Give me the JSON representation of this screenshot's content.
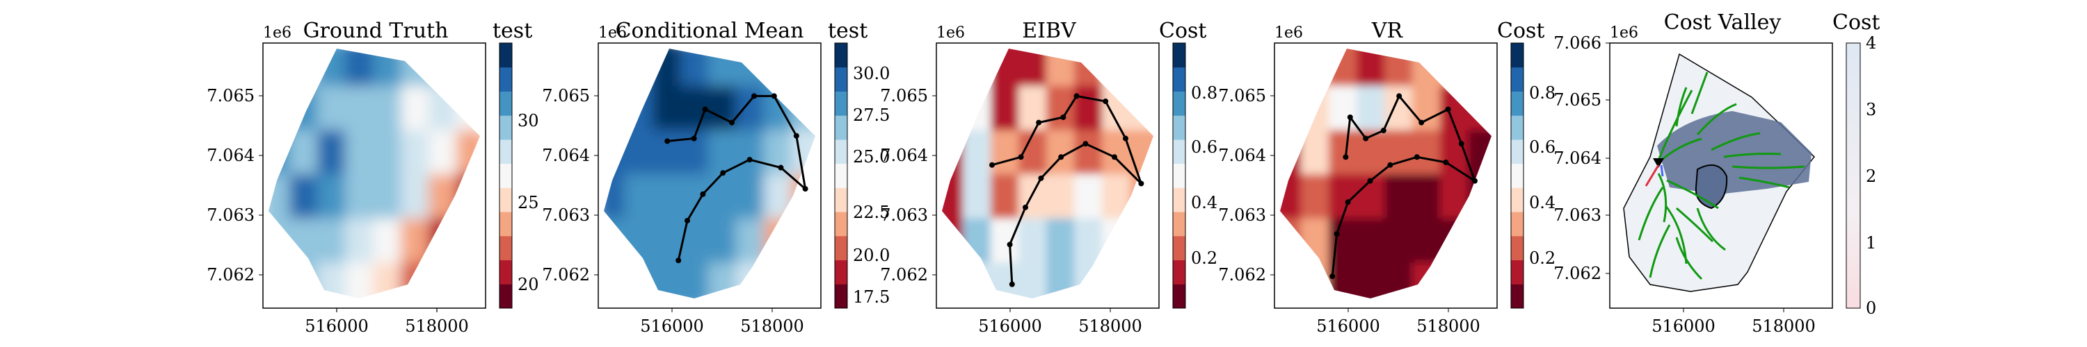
{
  "chart_data": [
    {
      "type": "heatmap",
      "title": "Ground Truth",
      "axis_offset_label": "1e6",
      "colorbar_label": "test",
      "xticks": [
        "516000",
        "518000"
      ],
      "yticks": [
        "7.065",
        "7.064",
        "7.063",
        "7.062"
      ],
      "colorbar_ticks": [
        "30",
        "25",
        "20"
      ],
      "colormap": [
        "#67001f",
        "#b2182b",
        "#d6604d",
        "#f4a582",
        "#fddbc7",
        "#f7f7f7",
        "#d1e5f0",
        "#92c5de",
        "#4393c3",
        "#2166ac",
        "#053061"
      ],
      "colorbar_range": [
        18,
        35
      ],
      "field_values": [
        [
          30,
          30,
          31,
          32,
          31,
          30,
          30,
          30
        ],
        [
          29,
          31,
          30,
          30,
          29,
          27,
          28,
          27
        ],
        [
          31,
          30,
          32,
          29,
          30,
          28,
          26,
          24
        ],
        [
          30,
          32,
          31,
          30,
          29,
          28,
          24,
          20
        ],
        [
          29,
          30,
          29,
          28,
          27,
          24,
          20,
          19
        ],
        [
          29,
          29,
          28,
          27,
          25,
          22,
          20,
          22
        ]
      ]
    },
    {
      "type": "heatmap",
      "title": "Conditional Mean",
      "axis_offset_label": "1e6",
      "colorbar_label": "test",
      "xticks": [
        "516000",
        "518000"
      ],
      "yticks": [
        "7.065",
        "7.064",
        "7.063",
        "7.062"
      ],
      "colorbar_ticks": [
        "30.0",
        "27.5",
        "25.0",
        "22.5",
        "20.0",
        "17.5"
      ],
      "colormap": [
        "#67001f",
        "#b2182b",
        "#d6604d",
        "#f4a582",
        "#fddbc7",
        "#f7f7f7",
        "#d1e5f0",
        "#92c5de",
        "#4393c3",
        "#2166ac",
        "#053061"
      ],
      "colorbar_range": [
        16.5,
        32
      ],
      "field_values": [
        [
          30,
          30,
          31,
          30,
          29,
          29,
          29,
          28
        ],
        [
          30,
          30,
          31,
          32,
          31,
          30,
          28,
          27
        ],
        [
          30,
          30,
          30,
          30,
          29,
          29,
          27,
          26
        ],
        [
          30,
          29,
          29,
          29,
          29,
          28,
          25,
          22
        ],
        [
          29,
          29,
          29,
          28,
          28,
          27,
          22,
          20
        ],
        [
          29,
          29,
          28,
          28,
          27,
          26,
          24,
          23
        ]
      ],
      "path": [
        [
          0.36,
          0.82
        ],
        [
          0.4,
          0.67
        ],
        [
          0.47,
          0.57
        ],
        [
          0.56,
          0.49
        ],
        [
          0.68,
          0.44
        ],
        [
          0.82,
          0.47
        ],
        [
          0.93,
          0.55
        ],
        [
          0.89,
          0.35
        ],
        [
          0.79,
          0.2
        ],
        [
          0.7,
          0.2
        ],
        [
          0.6,
          0.3
        ],
        [
          0.48,
          0.25
        ],
        [
          0.43,
          0.36
        ],
        [
          0.31,
          0.37
        ]
      ]
    },
    {
      "type": "heatmap",
      "title": "EIBV",
      "axis_offset_label": "1e6",
      "colorbar_label": "Cost",
      "xticks": [
        "516000",
        "518000"
      ],
      "yticks": [
        "7.065",
        "7.064",
        "7.063",
        "7.062"
      ],
      "colorbar_ticks": [
        "0.8",
        "0.6",
        "0.4",
        "0.2"
      ],
      "colormap": [
        "#67001f",
        "#b2182b",
        "#d6604d",
        "#f4a582",
        "#fddbc7",
        "#f7f7f7",
        "#d1e5f0",
        "#92c5de",
        "#4393c3",
        "#2166ac",
        "#053061"
      ],
      "colorbar_range": [
        0,
        1
      ],
      "field_values": [
        [
          0.3,
          0.5,
          0.1,
          0.1,
          0.3,
          0.2,
          0.4,
          0.5
        ],
        [
          0.2,
          0.5,
          0.1,
          0.4,
          0.2,
          0.1,
          0.4,
          0.4
        ],
        [
          0.1,
          0.6,
          0.3,
          0.2,
          0.3,
          0.2,
          0.3,
          0.3
        ],
        [
          0.1,
          0.6,
          0.2,
          0.4,
          0.4,
          0.5,
          0.4,
          0.3
        ],
        [
          0.1,
          0.7,
          0.5,
          0.6,
          0.7,
          0.6,
          0.5,
          0.2
        ],
        [
          0.5,
          0.6,
          0.6,
          0.6,
          0.7,
          0.6,
          0.5,
          0.4
        ]
      ],
      "path": [
        [
          0.34,
          0.91
        ],
        [
          0.33,
          0.76
        ],
        [
          0.4,
          0.62
        ],
        [
          0.47,
          0.51
        ],
        [
          0.56,
          0.43
        ],
        [
          0.67,
          0.38
        ],
        [
          0.8,
          0.43
        ],
        [
          0.92,
          0.53
        ],
        [
          0.85,
          0.36
        ],
        [
          0.76,
          0.22
        ],
        [
          0.63,
          0.2
        ],
        [
          0.57,
          0.28
        ],
        [
          0.46,
          0.3
        ],
        [
          0.38,
          0.43
        ],
        [
          0.25,
          0.46
        ]
      ]
    },
    {
      "type": "heatmap",
      "title": "VR",
      "axis_offset_label": "1e6",
      "colorbar_label": "Cost",
      "xticks": [
        "516000",
        "518000"
      ],
      "yticks": [
        "7.065",
        "7.064",
        "7.063",
        "7.062"
      ],
      "colorbar_ticks": [
        "0.8",
        "0.6",
        "0.4",
        "0.2"
      ],
      "colormap": [
        "#67001f",
        "#b2182b",
        "#d6604d",
        "#f4a582",
        "#fddbc7",
        "#f7f7f7",
        "#d1e5f0",
        "#92c5de",
        "#4393c3",
        "#2166ac",
        "#053061"
      ],
      "colorbar_range": [
        0,
        1
      ],
      "field_values": [
        [
          0.2,
          0.3,
          0.2,
          0.1,
          0.2,
          0.3,
          0.3,
          0.2
        ],
        [
          0.1,
          0.4,
          0.5,
          0.6,
          0.4,
          0.3,
          0.1,
          0.1
        ],
        [
          0.1,
          0.4,
          0.2,
          0.2,
          0.2,
          0.2,
          0.1,
          0.0
        ],
        [
          0.1,
          0.2,
          0.1,
          0.1,
          0.0,
          0.0,
          0.1,
          0.0
        ],
        [
          0.2,
          0.3,
          0.0,
          0.0,
          0.0,
          0.0,
          0.0,
          0.0
        ],
        [
          0.5,
          0.3,
          0.0,
          0.0,
          0.0,
          0.1,
          0.2,
          0.5
        ]
      ],
      "path": [
        [
          0.26,
          0.88
        ],
        [
          0.28,
          0.72
        ],
        [
          0.33,
          0.6
        ],
        [
          0.43,
          0.52
        ],
        [
          0.52,
          0.46
        ],
        [
          0.64,
          0.43
        ],
        [
          0.77,
          0.45
        ],
        [
          0.9,
          0.52
        ],
        [
          0.84,
          0.38
        ],
        [
          0.78,
          0.25
        ],
        [
          0.66,
          0.3
        ],
        [
          0.56,
          0.2
        ],
        [
          0.49,
          0.33
        ],
        [
          0.41,
          0.36
        ],
        [
          0.34,
          0.28
        ],
        [
          0.32,
          0.43
        ]
      ]
    },
    {
      "type": "heatmap",
      "title": "Cost Valley",
      "axis_offset_label": "1e6",
      "colorbar_label": "Cost",
      "xticks": [
        "516000",
        "518000"
      ],
      "yticks": [
        "7.066",
        "7.065",
        "7.064",
        "7.063",
        "7.062"
      ],
      "colorbar_ticks": [
        "4",
        "3",
        "2",
        "1",
        "0"
      ],
      "colormap": [
        "#fbe8ea",
        "#eef2f7",
        "#e6eef6"
      ],
      "colorbar_range": [
        0,
        4
      ],
      "field_values": [],
      "path": [
        [
          0.22,
          0.44
        ],
        [
          0.21,
          0.52
        ]
      ]
    }
  ]
}
